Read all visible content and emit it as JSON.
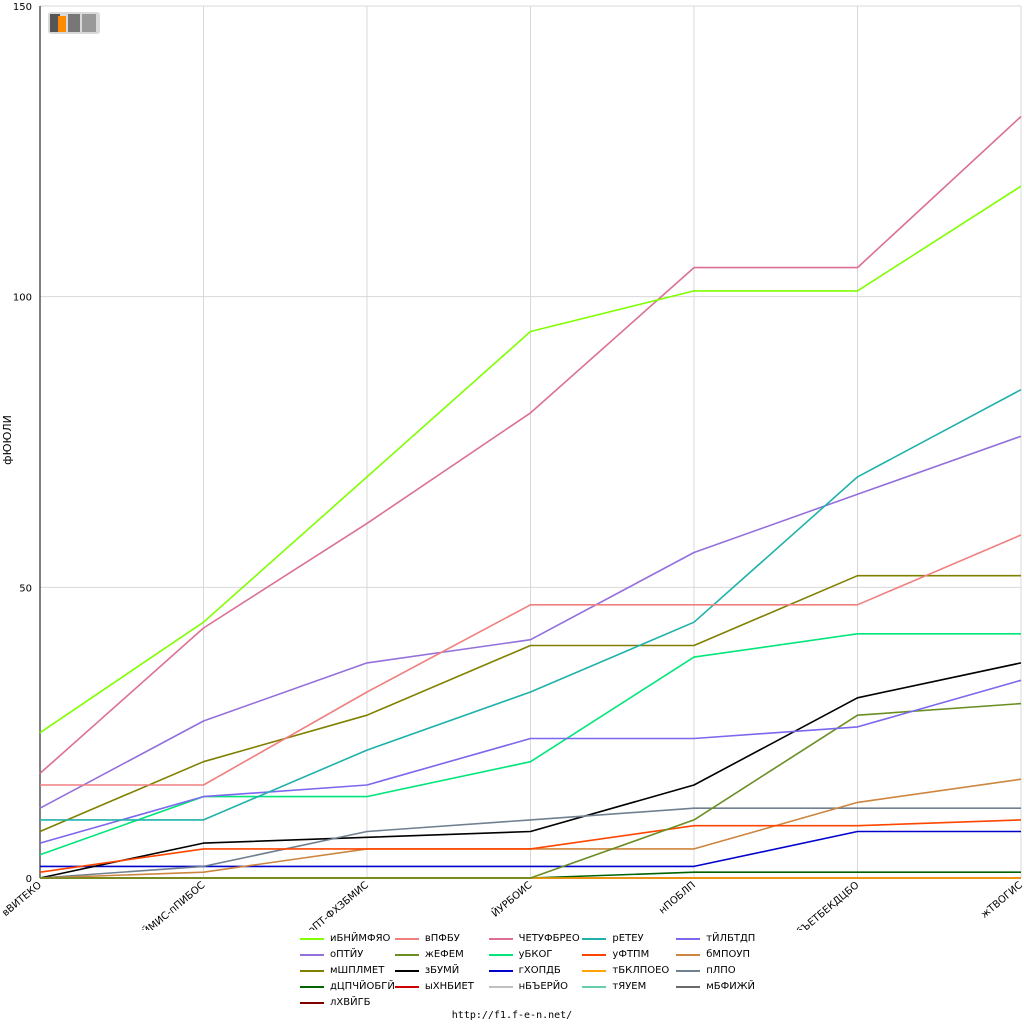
{
  "footer_url": "http://f1.f-e-n.net/",
  "logo_text": "F1EN",
  "chart_data": {
    "type": "line",
    "ylabel": "фЮЮЛИ",
    "xlabel": "",
    "ylim": [
      0,
      150
    ],
    "yticks": [
      0,
      50,
      100,
      150
    ],
    "grid": true,
    "legend_position": "bottom",
    "categories": [
      "вВИТЕКО",
      "еНЙМИС-пПИБОС",
      "оПТ-ФХЗБМИС",
      "ЙУРБОИС",
      "нПОБЛП",
      "бЪЕТБЕКДЦБО",
      "жТВОГИС"
    ],
    "series": [
      {
        "name": "иБНЙМФЯО",
        "color": "#7fff00",
        "values": [
          25,
          44,
          69,
          94,
          101,
          101,
          119
        ]
      },
      {
        "name": "вПФБУ",
        "color": "#f08080",
        "values": [
          16,
          16,
          32,
          47,
          47,
          47,
          59
        ]
      },
      {
        "name": "ЧЕТУФБРЕО",
        "color": "#db7093",
        "values": [
          18,
          43,
          61,
          80,
          105,
          105,
          131
        ]
      },
      {
        "name": "рЕТЕУ",
        "color": "#20b2aa",
        "values": [
          10,
          10,
          22,
          32,
          44,
          69,
          84
        ]
      },
      {
        "name": "тЙЛБТДП",
        "color": "#7b68ee",
        "values": [
          6,
          14,
          16,
          24,
          24,
          26,
          34
        ]
      },
      {
        "name": "оПТЙУ",
        "color": "#9370db",
        "values": [
          12,
          27,
          37,
          41,
          56,
          66,
          76
        ]
      },
      {
        "name": "жЕФЕМ",
        "color": "#6b8e23",
        "values": [
          0,
          0,
          0,
          0,
          10,
          28,
          30
        ]
      },
      {
        "name": "уБКОГ",
        "color": "#00e67a",
        "values": [
          4,
          14,
          14,
          20,
          38,
          42,
          42
        ]
      },
      {
        "name": "уФТПМ",
        "color": "#ff4500",
        "values": [
          1,
          5,
          5,
          5,
          9,
          9,
          10
        ]
      },
      {
        "name": "бМПОУП",
        "color": "#cd853f",
        "values": [
          0,
          1,
          5,
          5,
          5,
          13,
          17
        ]
      },
      {
        "name": "пЛПО",
        "color": "#708090",
        "values": [
          0,
          2,
          8,
          10,
          12,
          12,
          12
        ]
      },
      {
        "name": "мШПЛМЕТ",
        "color": "#808000",
        "values": [
          8,
          20,
          28,
          40,
          40,
          52,
          52
        ]
      },
      {
        "name": "зБУМЙ",
        "color": "#000000",
        "values": [
          0,
          6,
          7,
          8,
          16,
          31,
          37
        ]
      },
      {
        "name": "гХОПДБ",
        "color": "#0000cd",
        "values": [
          2,
          2,
          2,
          2,
          2,
          8,
          8
        ]
      },
      {
        "name": "тБКЛПОЕО",
        "color": "#ffa500",
        "values": [
          0,
          0,
          0,
          0,
          0,
          0,
          0
        ]
      },
      {
        "name": "дЦПЧЙОБГЙ",
        "color": "#006400",
        "values": [
          0,
          0,
          0,
          0,
          1,
          1,
          1
        ]
      },
      {
        "name": "ыХНБИЕТ",
        "color": "#cc0000",
        "values": [
          0,
          0,
          0,
          0,
          0,
          0,
          0
        ]
      },
      {
        "name": "нБЪЕРЙО",
        "color": "#c0c0c0",
        "values": [
          0,
          0,
          0,
          0,
          0,
          0,
          0
        ]
      },
      {
        "name": "тЯУЕМ",
        "color": "#66cdaa",
        "values": [
          0,
          0,
          0,
          0,
          0,
          0,
          0
        ]
      },
      {
        "name": "мБФИЖЙ",
        "color": "#696969",
        "values": [
          0,
          0,
          0,
          0,
          0,
          0,
          0
        ]
      },
      {
        "name": "лХВЙГБ",
        "color": "#800000",
        "values": [
          0,
          0,
          0,
          0,
          0,
          0,
          0
        ]
      }
    ]
  }
}
